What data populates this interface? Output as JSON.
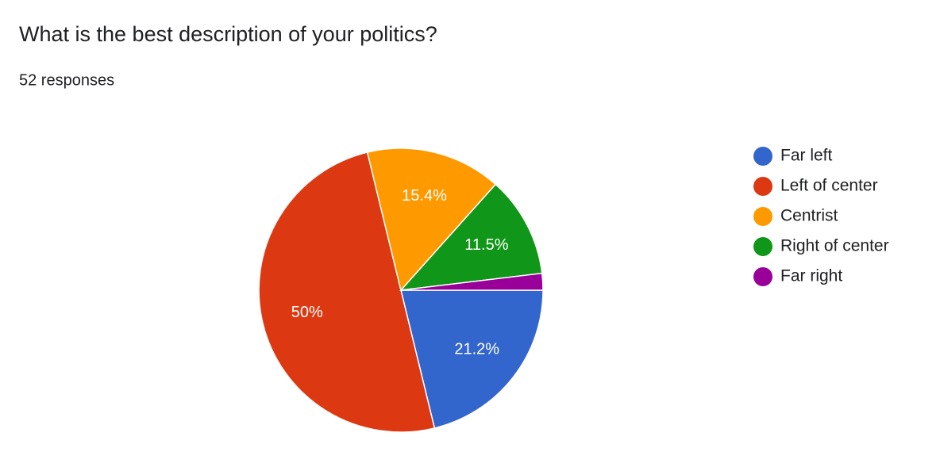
{
  "chart_data": {
    "type": "pie",
    "title": "What is the best description of your politics?",
    "subtitle": "52 responses",
    "categories": [
      "Far left",
      "Left of center",
      "Centrist",
      "Right of center",
      "Far right"
    ],
    "values": [
      21.2,
      50,
      15.4,
      11.5,
      1.9
    ],
    "value_labels": [
      "21.2%",
      "50%",
      "15.4%",
      "11.5%",
      null
    ],
    "colors": [
      "#3366cc",
      "#dc3912",
      "#ff9900",
      "#109618",
      "#990099"
    ],
    "legend": "right"
  }
}
